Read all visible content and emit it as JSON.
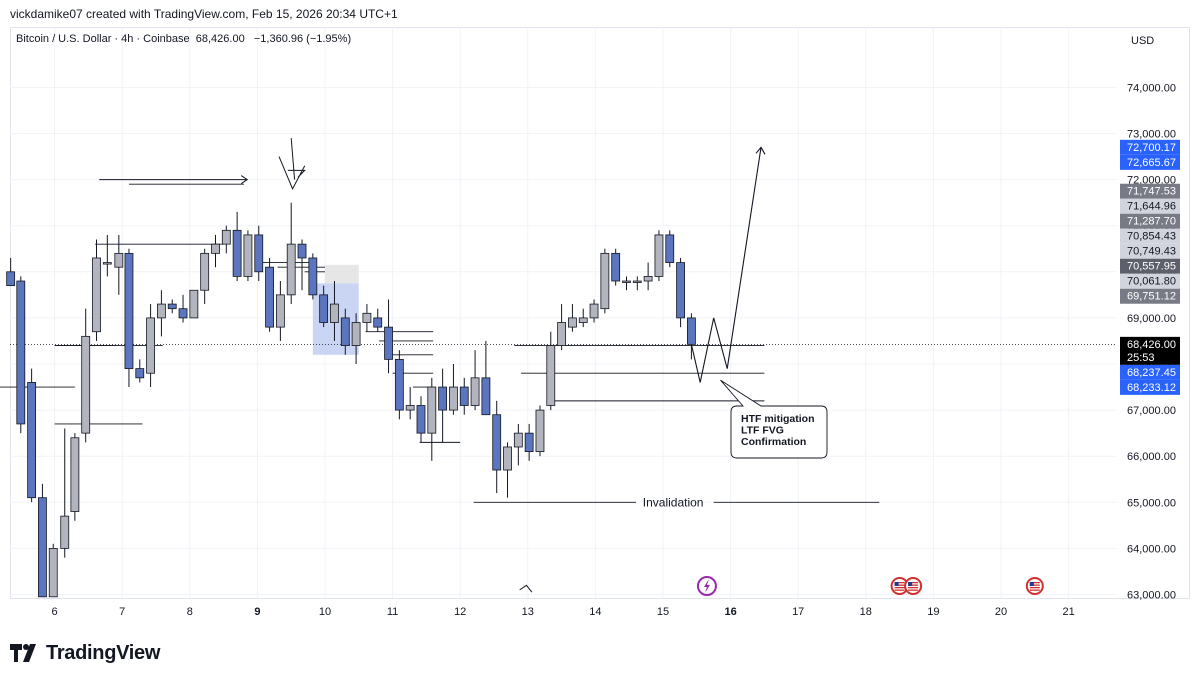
{
  "header": {
    "credit": "vickdamike07 created with TradingView.com, Feb 15, 2026 20:34 UTC+1",
    "symbol": "Bitcoin / U.S. Dollar · 4h · Coinbase",
    "price": "68,426.00",
    "change": "−1,360.96 (−1.95%)",
    "currency": "USD"
  },
  "footer": {
    "brand": "TradingView",
    "logo_icon": "tradingview-logo-icon"
  },
  "colors": {
    "up": "#b2b5be",
    "down": "#5b75be",
    "grid": "#f0f3fa",
    "current": "#000000",
    "blue_tag": "#2962ff",
    "gray_tag": "#787b86"
  },
  "chart_data": {
    "type": "candlestick",
    "y_axis": {
      "min": 62950,
      "max": 75060,
      "ticks": [
        "74,000.00",
        "73,000.00",
        "72,000.00",
        "71,000.00",
        "70,000.00",
        "69,000.00",
        "68,000.00",
        "67,000.00",
        "66,000.00",
        "65,000.00",
        "64,000.00",
        "63,000.00"
      ]
    },
    "x_axis": {
      "labels": [
        "6",
        "7",
        "8",
        "9",
        "10",
        "11",
        "12",
        "13",
        "14",
        "15",
        "16",
        "17",
        "18",
        "19",
        "20",
        "21"
      ],
      "bold": [
        "9",
        "16"
      ]
    },
    "candles": [
      {
        "d": 5.35,
        "o": 70000,
        "h": 70300,
        "l": 69700,
        "c": 69700
      },
      {
        "d": 5.5,
        "o": 69800,
        "h": 69900,
        "l": 66500,
        "c": 66700
      },
      {
        "d": 5.66,
        "o": 67600,
        "h": 67900,
        "l": 65000,
        "c": 65100
      },
      {
        "d": 5.82,
        "o": 65100,
        "h": 65400,
        "l": 62950,
        "c": 62950
      },
      {
        "d": 5.98,
        "o": 62950,
        "h": 64100,
        "l": 62950,
        "c": 64000
      },
      {
        "d": 6.15,
        "o": 64000,
        "h": 66600,
        "l": 63800,
        "c": 64700
      },
      {
        "d": 6.3,
        "o": 64800,
        "h": 66500,
        "l": 64600,
        "c": 66400
      },
      {
        "d": 6.46,
        "o": 66500,
        "h": 69200,
        "l": 66300,
        "c": 68600
      },
      {
        "d": 6.62,
        "o": 68700,
        "h": 70700,
        "l": 68500,
        "c": 70300
      },
      {
        "d": 6.78,
        "o": 70200,
        "h": 70800,
        "l": 69900,
        "c": 70200
      },
      {
        "d": 6.95,
        "o": 70100,
        "h": 70800,
        "l": 69500,
        "c": 70400
      },
      {
        "d": 7.1,
        "o": 70400,
        "h": 70500,
        "l": 67500,
        "c": 67900
      },
      {
        "d": 7.26,
        "o": 67900,
        "h": 68100,
        "l": 67600,
        "c": 67700
      },
      {
        "d": 7.42,
        "o": 67800,
        "h": 69300,
        "l": 67500,
        "c": 69000
      },
      {
        "d": 7.58,
        "o": 69000,
        "h": 69600,
        "l": 68600,
        "c": 69300
      },
      {
        "d": 7.74,
        "o": 69300,
        "h": 69400,
        "l": 69100,
        "c": 69200
      },
      {
        "d": 7.9,
        "o": 69200,
        "h": 69500,
        "l": 68900,
        "c": 69000
      },
      {
        "d": 8.06,
        "o": 69000,
        "h": 69600,
        "l": 69000,
        "c": 69600
      },
      {
        "d": 8.22,
        "o": 69600,
        "h": 70500,
        "l": 69300,
        "c": 70400
      },
      {
        "d": 8.38,
        "o": 70400,
        "h": 70800,
        "l": 70100,
        "c": 70600
      },
      {
        "d": 8.54,
        "o": 70600,
        "h": 71000,
        "l": 70400,
        "c": 70900
      },
      {
        "d": 8.7,
        "o": 70900,
        "h": 71300,
        "l": 69800,
        "c": 69900
      },
      {
        "d": 8.86,
        "o": 69900,
        "h": 70900,
        "l": 69800,
        "c": 70800
      },
      {
        "d": 9.02,
        "o": 70800,
        "h": 71000,
        "l": 69800,
        "c": 70000
      },
      {
        "d": 9.18,
        "o": 70100,
        "h": 70300,
        "l": 68700,
        "c": 68800
      },
      {
        "d": 9.34,
        "o": 68800,
        "h": 69800,
        "l": 68500,
        "c": 69500
      },
      {
        "d": 9.5,
        "o": 69500,
        "h": 71500,
        "l": 69300,
        "c": 70600
      },
      {
        "d": 9.66,
        "o": 70600,
        "h": 70700,
        "l": 69600,
        "c": 70300
      },
      {
        "d": 9.82,
        "o": 70300,
        "h": 70400,
        "l": 69400,
        "c": 69500
      },
      {
        "d": 9.98,
        "o": 69500,
        "h": 69700,
        "l": 68800,
        "c": 68900
      },
      {
        "d": 10.14,
        "o": 68900,
        "h": 69800,
        "l": 68500,
        "c": 69300
      },
      {
        "d": 10.3,
        "o": 69000,
        "h": 69200,
        "l": 68200,
        "c": 68400
      },
      {
        "d": 10.46,
        "o": 68400,
        "h": 69100,
        "l": 68000,
        "c": 68900
      },
      {
        "d": 10.62,
        "o": 68900,
        "h": 69300,
        "l": 68700,
        "c": 69100
      },
      {
        "d": 10.78,
        "o": 69000,
        "h": 69200,
        "l": 68700,
        "c": 68800
      },
      {
        "d": 10.94,
        "o": 68800,
        "h": 69400,
        "l": 67800,
        "c": 68100
      },
      {
        "d": 11.1,
        "o": 68100,
        "h": 68300,
        "l": 66800,
        "c": 67000
      },
      {
        "d": 11.26,
        "o": 67000,
        "h": 67500,
        "l": 66800,
        "c": 67100
      },
      {
        "d": 11.42,
        "o": 67100,
        "h": 67300,
        "l": 66300,
        "c": 66500
      },
      {
        "d": 11.58,
        "o": 66500,
        "h": 67700,
        "l": 65900,
        "c": 67500
      },
      {
        "d": 11.74,
        "o": 67500,
        "h": 67900,
        "l": 66300,
        "c": 67000
      },
      {
        "d": 11.9,
        "o": 67000,
        "h": 68000,
        "l": 66900,
        "c": 67500
      },
      {
        "d": 12.06,
        "o": 67500,
        "h": 67700,
        "l": 66900,
        "c": 67100
      },
      {
        "d": 12.22,
        "o": 67100,
        "h": 68300,
        "l": 67000,
        "c": 67700
      },
      {
        "d": 12.38,
        "o": 67700,
        "h": 68500,
        "l": 66900,
        "c": 66900
      },
      {
        "d": 12.54,
        "o": 66900,
        "h": 67200,
        "l": 65200,
        "c": 65700
      },
      {
        "d": 12.7,
        "o": 65700,
        "h": 66300,
        "l": 65100,
        "c": 66200
      },
      {
        "d": 12.86,
        "o": 66200,
        "h": 66700,
        "l": 65800,
        "c": 66500
      },
      {
        "d": 13.02,
        "o": 66500,
        "h": 66700,
        "l": 65900,
        "c": 66100
      },
      {
        "d": 13.18,
        "o": 66100,
        "h": 67100,
        "l": 66000,
        "c": 67000
      },
      {
        "d": 13.34,
        "o": 67100,
        "h": 68700,
        "l": 67000,
        "c": 68400
      },
      {
        "d": 13.5,
        "o": 68400,
        "h": 69300,
        "l": 68300,
        "c": 68900
      },
      {
        "d": 13.66,
        "o": 68800,
        "h": 69300,
        "l": 68700,
        "c": 69000
      },
      {
        "d": 13.82,
        "o": 68900,
        "h": 69200,
        "l": 68800,
        "c": 69000
      },
      {
        "d": 13.98,
        "o": 69000,
        "h": 69400,
        "l": 68900,
        "c": 69300
      },
      {
        "d": 14.14,
        "o": 69200,
        "h": 70500,
        "l": 69100,
        "c": 70400
      },
      {
        "d": 14.3,
        "o": 70400,
        "h": 70500,
        "l": 69700,
        "c": 69800
      },
      {
        "d": 14.46,
        "o": 69800,
        "h": 69900,
        "l": 69600,
        "c": 69800
      },
      {
        "d": 14.62,
        "o": 69800,
        "h": 69900,
        "l": 69600,
        "c": 69800
      },
      {
        "d": 14.78,
        "o": 69800,
        "h": 70200,
        "l": 69600,
        "c": 69900
      },
      {
        "d": 14.94,
        "o": 69900,
        "h": 70900,
        "l": 69800,
        "c": 70800
      },
      {
        "d": 15.1,
        "o": 70800,
        "h": 70900,
        "l": 70100,
        "c": 70200
      },
      {
        "d": 15.26,
        "o": 70200,
        "h": 70300,
        "l": 68800,
        "c": 69000
      },
      {
        "d": 15.42,
        "o": 69000,
        "h": 69100,
        "l": 68100,
        "c": 68426
      }
    ],
    "price_tags": [
      {
        "price": 72700.17,
        "label": "72,700.17",
        "style": "blue"
      },
      {
        "price": 72665.67,
        "label": "72,665.67",
        "style": "blue"
      },
      {
        "price": 71747.53,
        "label": "71,747.53",
        "style": "gray"
      },
      {
        "price": 71644.96,
        "label": "71,644.96",
        "style": "light"
      },
      {
        "price": 71287.7,
        "label": "71,287.70",
        "style": "gray"
      },
      {
        "price": 70854.43,
        "label": "70,854.43",
        "style": "light"
      },
      {
        "price": 70749.43,
        "label": "70,749.43",
        "style": "light"
      },
      {
        "price": 70557.95,
        "label": "70,557.95",
        "style": "dark"
      },
      {
        "price": 70061.8,
        "label": "70,061.80",
        "style": "light"
      },
      {
        "price": 69751.12,
        "label": "69,751.12",
        "style": "gray"
      },
      {
        "price": 68426.0,
        "label": "68,426.00",
        "sub": "25:53",
        "style": "current"
      },
      {
        "price": 68237.45,
        "label": "68,237.45",
        "style": "blue"
      },
      {
        "price": 68233.12,
        "label": "68,233.12",
        "style": "blue"
      }
    ],
    "annotations": {
      "note_lines": [
        "HTF mitigation",
        "LTF FVG",
        "Confirmation"
      ],
      "invalidation": "Invalidation",
      "invalidation_price": 65000,
      "current_price": 68426
    }
  }
}
